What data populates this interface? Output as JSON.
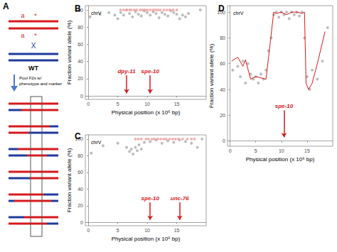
{
  "diagram": {
    "panel": "A",
    "labels_top": [
      "a",
      "*"
    ],
    "labels_bottom": [
      "a",
      "*"
    ],
    "cross": "X",
    "wild_type": "WT",
    "step": [
      "Pool F2s w/",
      "phenotype and marker"
    ]
  },
  "chart_data": [
    {
      "type": "scatter",
      "panel": "B",
      "label": "chrV",
      "x_label": "Physical position (x 10⁶ bp)",
      "y_label": "Fraction variant allele (%)",
      "xlim": [
        -0.5,
        20
      ],
      "xticks": [
        0,
        5,
        10,
        15
      ],
      "ylim": [
        -4,
        105
      ],
      "yticks": [
        0,
        20,
        40,
        60,
        80,
        100
      ],
      "grid": false,
      "marker": "circle",
      "series": [
        {
          "type": "scatter",
          "color": "#a6a6a6",
          "x": [
            0.3,
            2,
            3.5,
            4.5,
            5,
            5.5,
            6,
            6.5,
            7,
            7.5,
            8,
            8.5,
            9,
            9.5,
            10,
            10.5,
            11,
            11.5,
            12,
            12.5,
            13,
            13.5,
            14,
            14.5,
            15,
            15.5,
            16,
            16.5,
            17,
            19
          ],
          "values": [
            92,
            95,
            97,
            94,
            90,
            97,
            94,
            100,
            96,
            92,
            98,
            95,
            93,
            99,
            97,
            94,
            98,
            96,
            91,
            97,
            95,
            93,
            99,
            97,
            95,
            90,
            94,
            92,
            96,
            100
          ]
        },
        {
          "type": "scatter",
          "color": "#ef9a9a",
          "x": [
            5.5,
            6,
            6.5,
            7,
            7.3,
            7.8,
            8.2,
            8.8,
            9.2,
            9.6,
            10,
            10.5,
            11,
            11.4,
            11.8,
            12.2,
            12.8,
            13.3,
            13.8,
            14.4,
            15
          ],
          "values": [
            100,
            100,
            100,
            100,
            100,
            100,
            100,
            100,
            100,
            100,
            100,
            100,
            100,
            100,
            100,
            100,
            100,
            100,
            100,
            100,
            100
          ]
        }
      ],
      "annotations": [
        {
          "text": "dpy-11",
          "x": 6.5,
          "y_from": 24,
          "y_to": 3,
          "color": "#d7191c"
        },
        {
          "text": "spe-10",
          "x": 10.5,
          "y_from": 24,
          "y_to": 3,
          "color": "#d7191c"
        }
      ]
    },
    {
      "type": "scatter",
      "panel": "C",
      "label": "chrV",
      "x_label": "Physical position (x 10⁶ bp)",
      "y_label": "Fraction variant allele (%)",
      "xlim": [
        -0.5,
        20
      ],
      "xticks": [
        0,
        5,
        10,
        15
      ],
      "ylim": [
        -4,
        105
      ],
      "yticks": [
        0,
        20,
        40,
        60,
        80,
        100
      ],
      "grid": false,
      "marker": "circle",
      "series": [
        {
          "type": "scatter",
          "color": "#a6a6a6",
          "x": [
            0.5,
            2.5,
            5,
            6.5,
            7,
            7.3,
            7.6,
            8,
            8.3,
            8.6,
            9,
            9.5,
            10.5,
            11.5,
            12.5,
            13.5,
            14.5,
            15.5,
            16.5,
            17.5,
            18.5,
            19.3
          ],
          "values": [
            83,
            92,
            95,
            90,
            85,
            88,
            82,
            90,
            86,
            93,
            88,
            96,
            97,
            99,
            95,
            98,
            96,
            99,
            97,
            95,
            90,
            100
          ]
        },
        {
          "type": "scatter",
          "color": "#ef9a9a",
          "x": [
            8,
            8.5,
            9,
            9.8,
            10.2,
            10.8,
            11.2,
            11.8,
            12.3,
            12.8,
            13.2,
            13.8,
            14.3,
            14.8,
            15.3,
            16,
            16.8,
            17.5,
            18
          ],
          "values": [
            100,
            100,
            100,
            100,
            100,
            100,
            100,
            100,
            100,
            100,
            100,
            100,
            100,
            100,
            100,
            100,
            100,
            100,
            100
          ]
        }
      ],
      "annotations": [
        {
          "text": "spe-10",
          "x": 10.5,
          "y_from": 24,
          "y_to": 3,
          "color": "#d7191c"
        },
        {
          "text": "unc-76",
          "x": 15.5,
          "y_from": 24,
          "y_to": 3,
          "color": "#d7191c"
        }
      ]
    },
    {
      "type": "scatter",
      "panel": "D",
      "label": "chrV",
      "x_label": "Physical position (x 10⁶ bp)",
      "y_label": "Fraction variant allele (%)",
      "xlim": [
        -0.5,
        20
      ],
      "xticks": [
        0,
        5,
        10,
        15
      ],
      "ylim": [
        -4,
        105
      ],
      "yticks": [
        0,
        20,
        40,
        60,
        80,
        100
      ],
      "grid": false,
      "marker": "circle",
      "series": [
        {
          "type": "scatter",
          "color": "#a6a6a6",
          "x": [
            0.5,
            1.5,
            2,
            2.5,
            3,
            3.5,
            4,
            4.5,
            5,
            5.5,
            6,
            6.5,
            7,
            7.5,
            8,
            8.5,
            9,
            9.5,
            10,
            10.5,
            11,
            11.5,
            12,
            12.5,
            13,
            13.5,
            14,
            14.5,
            15,
            15.5,
            16,
            17,
            18,
            19
          ],
          "values": [
            55,
            58,
            50,
            62,
            45,
            60,
            52,
            48,
            50,
            45,
            52,
            48,
            55,
            70,
            80,
            98,
            100,
            96,
            100,
            98,
            100,
            95,
            100,
            98,
            100,
            97,
            100,
            80,
            50,
            40,
            55,
            48,
            62,
            88
          ]
        },
        {
          "type": "line",
          "color": "#d7191c",
          "x": [
            0.3,
            1.5,
            2.5,
            3,
            4,
            5,
            6,
            7,
            7.5,
            8.5,
            9,
            10,
            11,
            12,
            13,
            14,
            14.5,
            14.8,
            15.3,
            16,
            17,
            18.5
          ],
          "values": [
            62,
            65,
            58,
            63,
            48,
            50,
            49,
            48,
            65,
            100,
            99,
            100,
            98,
            100,
            100,
            99,
            100,
            45,
            40,
            45,
            60,
            85
          ]
        }
      ],
      "annotations": [
        {
          "text": "spe-10",
          "x": 10.5,
          "y_from": 24,
          "y_to": 3,
          "color": "#d7191c"
        }
      ]
    }
  ]
}
